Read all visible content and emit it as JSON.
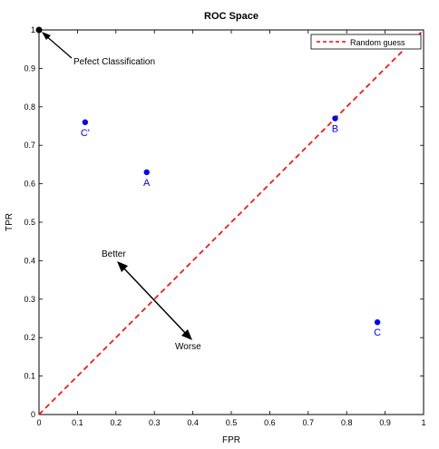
{
  "chart_data": {
    "type": "scatter",
    "title": "ROC Space",
    "xlabel": "FPR",
    "ylabel": "TPR",
    "xlim": [
      0,
      1
    ],
    "ylim": [
      0,
      1
    ],
    "x_ticks": [
      "0",
      "0.1",
      "0.2",
      "0.3",
      "0.4",
      "0.5",
      "0.6",
      "0.7",
      "0.8",
      "0.9",
      "1"
    ],
    "y_ticks": [
      "0",
      "0.1",
      "0.2",
      "0.3",
      "0.4",
      "0.5",
      "0.6",
      "0.7",
      "0.8",
      "0.9",
      "1"
    ],
    "grid": false,
    "legend_position": "top-right",
    "points": [
      {
        "label": "C'",
        "x": 0.12,
        "y": 0.76,
        "color": "#0000ff"
      },
      {
        "label": "A",
        "x": 0.28,
        "y": 0.63,
        "color": "#0000ff"
      },
      {
        "label": "B",
        "x": 0.77,
        "y": 0.77,
        "color": "#0000ff"
      },
      {
        "label": "C",
        "x": 0.88,
        "y": 0.24,
        "color": "#0000ff"
      }
    ],
    "perfect_point": {
      "x": 0,
      "y": 1,
      "color": "#000000"
    },
    "random_line": {
      "name": "Random guess",
      "x": [
        0,
        1
      ],
      "y": [
        0,
        1
      ],
      "color": "#ff0000",
      "style": "dashed"
    },
    "annotations": [
      {
        "text": "Pefect Classification"
      },
      {
        "text": "Better"
      },
      {
        "text": "Worse"
      }
    ]
  }
}
